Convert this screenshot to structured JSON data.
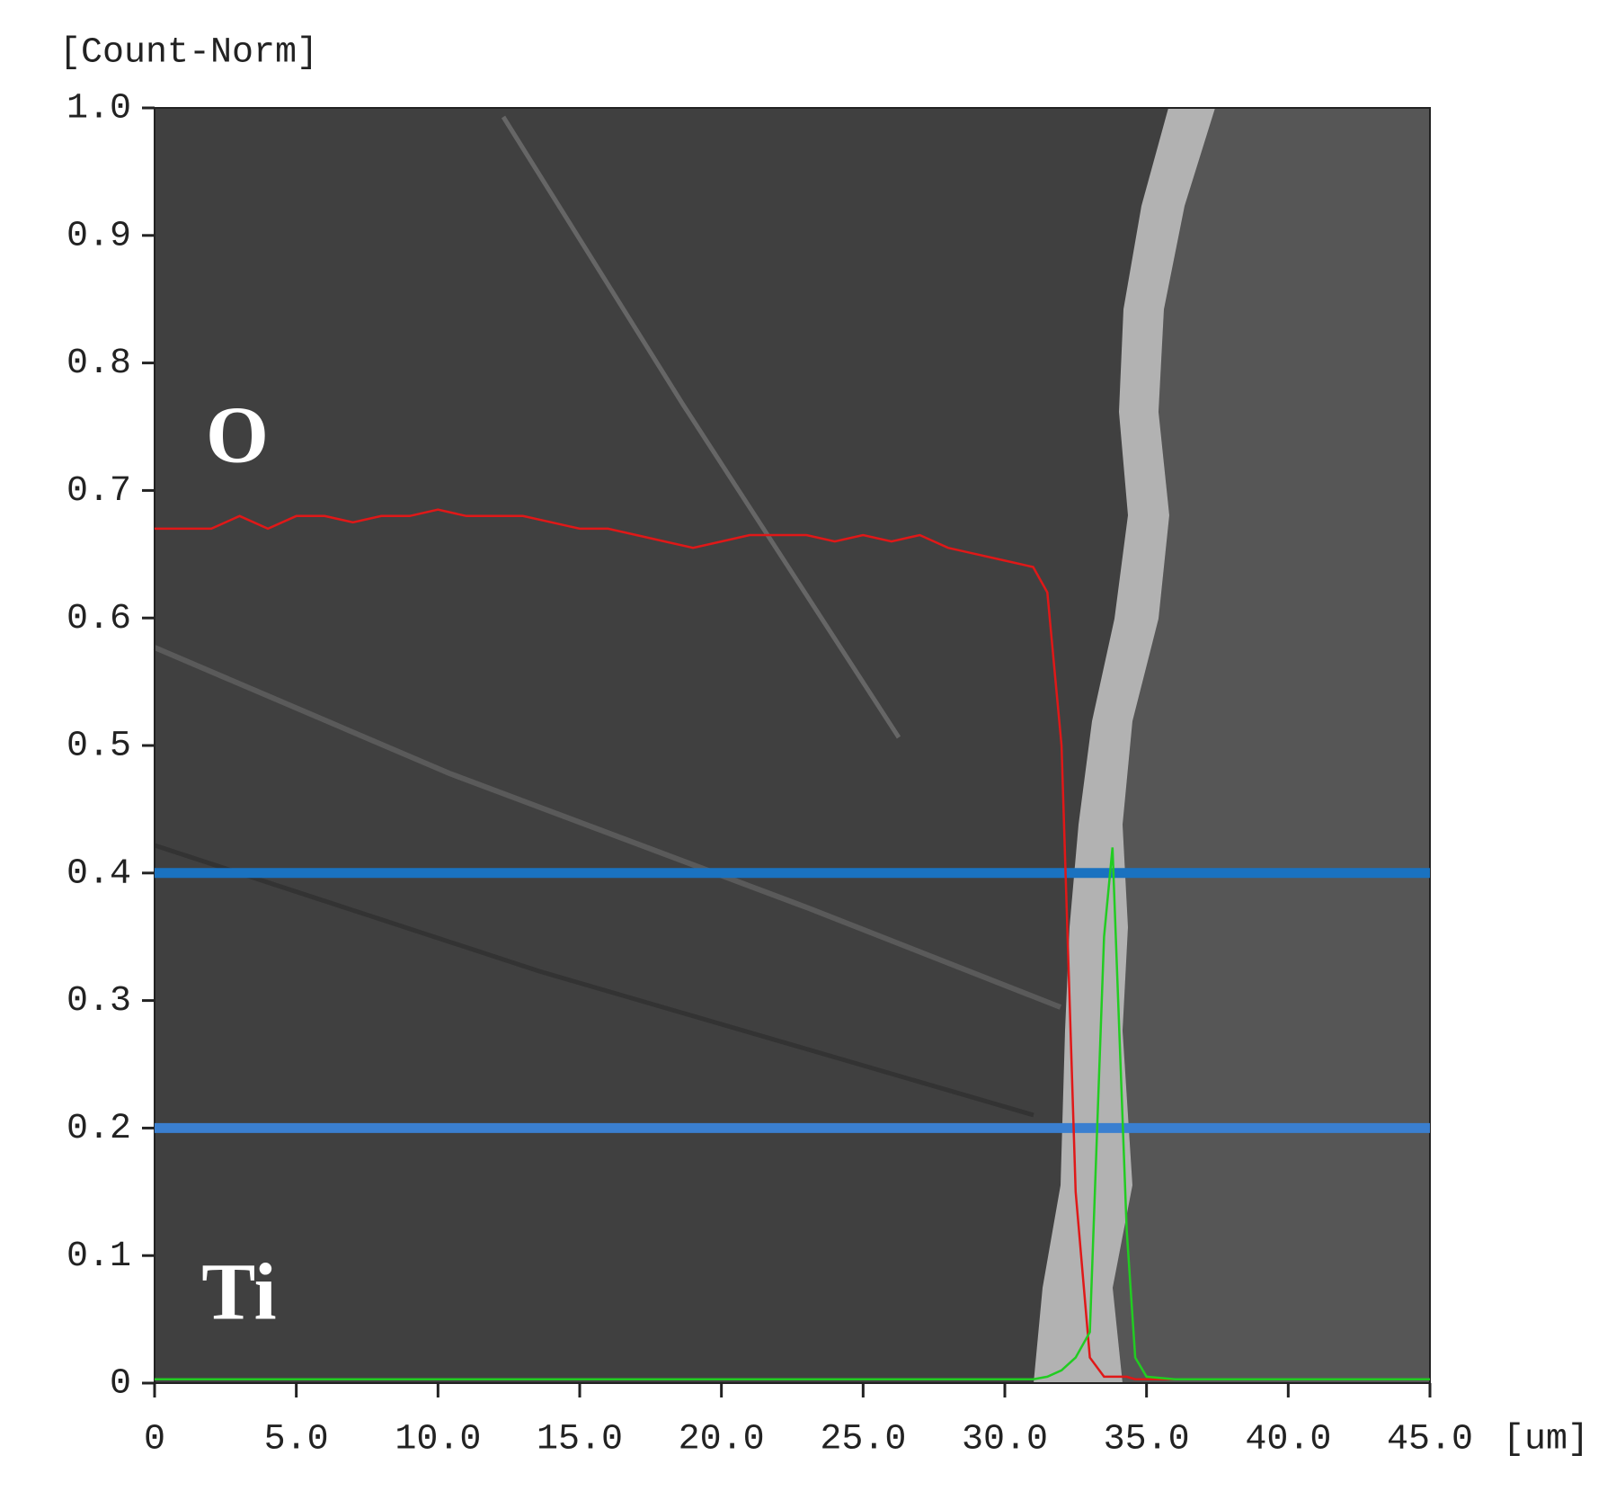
{
  "chart_data": {
    "type": "line",
    "y_label": "[Count-Norm]",
    "x_label": "[um]",
    "x": [
      0,
      1,
      2,
      3,
      4,
      5,
      6,
      7,
      8,
      9,
      10,
      11,
      12,
      13,
      14,
      15,
      16,
      17,
      18,
      19,
      20,
      21,
      22,
      23,
      24,
      25,
      26,
      27,
      28,
      29,
      30,
      31,
      31.5,
      32,
      32.5,
      33,
      33.5,
      33.8,
      34,
      34.3,
      34.6,
      35,
      36,
      38,
      40,
      42,
      45
    ],
    "series": [
      {
        "name": "O",
        "color": "#e01818",
        "values": [
          0.67,
          0.67,
          0.67,
          0.68,
          0.67,
          0.68,
          0.68,
          0.675,
          0.68,
          0.68,
          0.685,
          0.68,
          0.68,
          0.68,
          0.675,
          0.67,
          0.67,
          0.665,
          0.66,
          0.655,
          0.66,
          0.665,
          0.665,
          0.665,
          0.66,
          0.665,
          0.66,
          0.665,
          0.655,
          0.65,
          0.645,
          0.64,
          0.62,
          0.5,
          0.15,
          0.02,
          0.005,
          0.005,
          0.005,
          0.005,
          0.003,
          0.003,
          0.003,
          0.003,
          0.003,
          0.003,
          0.003
        ]
      },
      {
        "name": "Ti",
        "color": "#22cc22",
        "values": [
          0.003,
          0.003,
          0.003,
          0.003,
          0.003,
          0.003,
          0.003,
          0.003,
          0.003,
          0.003,
          0.003,
          0.003,
          0.003,
          0.003,
          0.003,
          0.003,
          0.003,
          0.003,
          0.003,
          0.003,
          0.003,
          0.003,
          0.003,
          0.003,
          0.003,
          0.003,
          0.003,
          0.003,
          0.003,
          0.003,
          0.003,
          0.003,
          0.005,
          0.01,
          0.02,
          0.04,
          0.35,
          0.42,
          0.3,
          0.12,
          0.02,
          0.005,
          0.003,
          0.003,
          0.003,
          0.003,
          0.003
        ]
      }
    ],
    "hlines": [
      {
        "value": 0.4,
        "color": "#1a72c0"
      },
      {
        "value": 0.2,
        "color": "#3a7fd0"
      }
    ],
    "xlim": [
      0,
      45
    ],
    "ylim": [
      0,
      1
    ],
    "xticks": [
      0,
      {
        "value": 5,
        "label": "5.0"
      },
      {
        "value": 10,
        "label": "10.0"
      },
      {
        "value": 15,
        "label": "15.0"
      },
      {
        "value": 20,
        "label": "20.0"
      },
      {
        "value": 25,
        "label": "25.0"
      },
      {
        "value": 30,
        "label": "30.0"
      },
      {
        "value": 35,
        "label": "35.0"
      },
      {
        "value": 40,
        "label": "40.0"
      },
      {
        "value": 45,
        "label": "45.0"
      }
    ],
    "yticks": [
      0,
      0.1,
      0.2,
      0.3,
      0.4,
      0.5,
      0.6,
      0.7,
      0.8,
      0.9,
      {
        "value": 1,
        "label": "1.0"
      }
    ],
    "grid": false
  }
}
